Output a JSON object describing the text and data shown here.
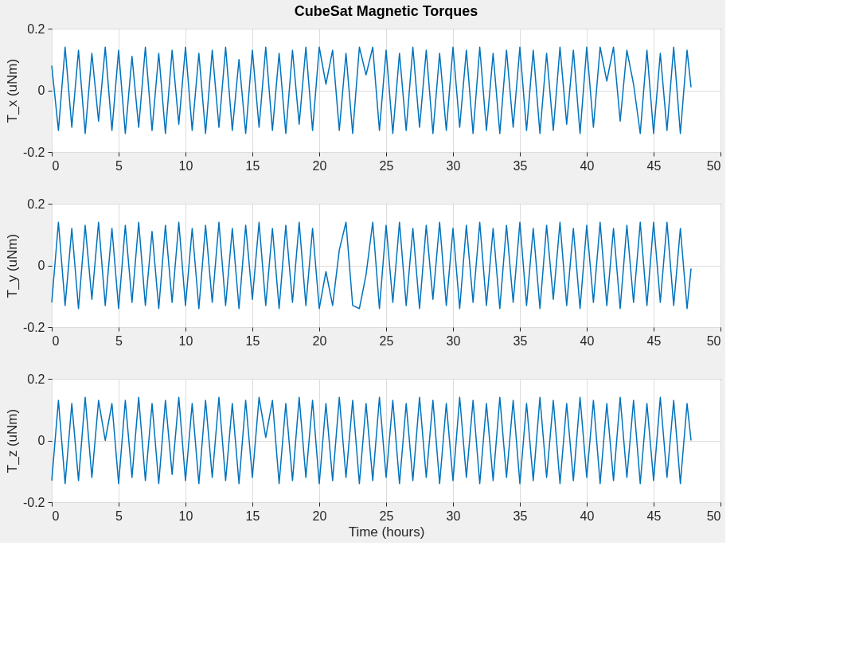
{
  "chart_data": [
    {
      "type": "line",
      "title": "CubeSat Magnetic Torques",
      "ylabel": "T_x (uNm)",
      "xlim": [
        0,
        50
      ],
      "ylim": [
        -0.2,
        0.2
      ],
      "xticks": [
        0,
        5,
        10,
        15,
        20,
        25,
        30,
        35,
        40,
        45,
        50
      ],
      "yticks": [
        -0.2,
        0,
        0.2
      ],
      "grid": true,
      "marker": "none",
      "line_style": "solid",
      "x": [
        0,
        0.5,
        1,
        1.5,
        2,
        2.5,
        3,
        3.5,
        4,
        4.5,
        5,
        5.5,
        6,
        6.5,
        7,
        7.5,
        8,
        8.5,
        9,
        9.5,
        10,
        10.5,
        11,
        11.5,
        12,
        12.5,
        13,
        13.5,
        14,
        14.5,
        15,
        15.5,
        16,
        16.5,
        17,
        17.5,
        18,
        18.5,
        19,
        19.5,
        20,
        20.5,
        21,
        21.5,
        22,
        22.5,
        23,
        23.5,
        24,
        24.5,
        25,
        25.5,
        26,
        26.5,
        27,
        27.5,
        28,
        28.5,
        29,
        29.5,
        30,
        30.5,
        31,
        31.5,
        32,
        32.5,
        33,
        33.5,
        34,
        34.5,
        35,
        35.5,
        36,
        36.5,
        37,
        37.5,
        38,
        38.5,
        39,
        39.5,
        40,
        40.5,
        41,
        41.5,
        42,
        42.5,
        43,
        43.5,
        44,
        44.5,
        45,
        45.5,
        46,
        46.5,
        47,
        47.5,
        47.8
      ],
      "series": [
        {
          "color": "#0072bd",
          "values": [
            0.08,
            -0.13,
            0.14,
            -0.12,
            0.13,
            -0.14,
            0.12,
            -0.1,
            0.14,
            -0.13,
            0.13,
            -0.14,
            0.11,
            -0.12,
            0.14,
            -0.13,
            0.12,
            -0.14,
            0.13,
            -0.11,
            0.14,
            -0.13,
            0.12,
            -0.14,
            0.13,
            -0.12,
            0.14,
            -0.13,
            0.1,
            -0.14,
            0.13,
            -0.12,
            0.14,
            -0.13,
            0.12,
            -0.14,
            0.13,
            -0.11,
            0.14,
            -0.13,
            0.14,
            0.02,
            0.13,
            -0.13,
            0.12,
            -0.14,
            0.14,
            0.05,
            0.14,
            -0.13,
            0.13,
            -0.14,
            0.12,
            -0.13,
            0.14,
            -0.12,
            0.13,
            -0.14,
            0.12,
            -0.13,
            0.14,
            -0.12,
            0.13,
            -0.14,
            0.14,
            -0.13,
            0.12,
            -0.14,
            0.13,
            -0.12,
            0.14,
            -0.13,
            0.13,
            -0.14,
            0.12,
            -0.13,
            0.14,
            -0.11,
            0.13,
            -0.14,
            0.14,
            -0.12,
            0.14,
            0.03,
            0.14,
            -0.1,
            0.13,
            0.02,
            -0.14,
            0.13,
            -0.14,
            0.12,
            -0.13,
            0.14,
            -0.14,
            0.13,
            0.01
          ]
        }
      ]
    },
    {
      "type": "line",
      "ylabel": "T_y (uNm)",
      "xlim": [
        0,
        50
      ],
      "ylim": [
        -0.2,
        0.2
      ],
      "xticks": [
        0,
        5,
        10,
        15,
        20,
        25,
        30,
        35,
        40,
        45,
        50
      ],
      "yticks": [
        -0.2,
        0,
        0.2
      ],
      "grid": true,
      "marker": "none",
      "line_style": "solid",
      "x": [
        0,
        0.5,
        1,
        1.5,
        2,
        2.5,
        3,
        3.5,
        4,
        4.5,
        5,
        5.5,
        6,
        6.5,
        7,
        7.5,
        8,
        8.5,
        9,
        9.5,
        10,
        10.5,
        11,
        11.5,
        12,
        12.5,
        13,
        13.5,
        14,
        14.5,
        15,
        15.5,
        16,
        16.5,
        17,
        17.5,
        18,
        18.5,
        19,
        19.5,
        20,
        20.5,
        21,
        21.5,
        22,
        22.5,
        23,
        23.5,
        24,
        24.5,
        25,
        25.5,
        26,
        26.5,
        27,
        27.5,
        28,
        28.5,
        29,
        29.5,
        30,
        30.5,
        31,
        31.5,
        32,
        32.5,
        33,
        33.5,
        34,
        34.5,
        35,
        35.5,
        36,
        36.5,
        37,
        37.5,
        38,
        38.5,
        39,
        39.5,
        40,
        40.5,
        41,
        41.5,
        42,
        42.5,
        43,
        43.5,
        44,
        44.5,
        45,
        45.5,
        46,
        46.5,
        47,
        47.5,
        47.8
      ],
      "series": [
        {
          "color": "#0072bd",
          "values": [
            -0.12,
            0.14,
            -0.13,
            0.12,
            -0.14,
            0.13,
            -0.11,
            0.14,
            -0.13,
            0.12,
            -0.14,
            0.13,
            -0.12,
            0.14,
            -0.13,
            0.11,
            -0.14,
            0.13,
            -0.12,
            0.14,
            -0.13,
            0.12,
            -0.14,
            0.13,
            -0.12,
            0.14,
            -0.13,
            0.12,
            -0.14,
            0.13,
            -0.11,
            0.14,
            -0.13,
            0.12,
            -0.14,
            0.13,
            -0.12,
            0.14,
            -0.13,
            0.12,
            -0.14,
            -0.02,
            -0.13,
            0.05,
            0.14,
            -0.13,
            -0.14,
            -0.03,
            0.14,
            -0.14,
            0.13,
            -0.12,
            0.14,
            -0.13,
            0.12,
            -0.14,
            0.13,
            -0.11,
            0.14,
            -0.13,
            0.12,
            -0.14,
            0.13,
            -0.12,
            0.14,
            -0.13,
            0.12,
            -0.14,
            0.13,
            -0.12,
            0.14,
            -0.13,
            0.12,
            -0.14,
            0.13,
            -0.11,
            0.14,
            -0.13,
            0.12,
            -0.14,
            0.13,
            -0.12,
            0.14,
            -0.13,
            0.12,
            -0.14,
            0.13,
            -0.12,
            0.14,
            -0.13,
            0.14,
            -0.12,
            0.14,
            -0.13,
            0.12,
            -0.14,
            -0.01
          ]
        }
      ]
    },
    {
      "type": "line",
      "xlabel": "Time (hours)",
      "ylabel": "T_z (uNm)",
      "xlim": [
        0,
        50
      ],
      "ylim": [
        -0.2,
        0.2
      ],
      "xticks": [
        0,
        5,
        10,
        15,
        20,
        25,
        30,
        35,
        40,
        45,
        50
      ],
      "yticks": [
        -0.2,
        0,
        0.2
      ],
      "grid": true,
      "marker": "none",
      "line_style": "solid",
      "x": [
        0,
        0.5,
        1,
        1.5,
        2,
        2.5,
        3,
        3.5,
        4,
        4.5,
        5,
        5.5,
        6,
        6.5,
        7,
        7.5,
        8,
        8.5,
        9,
        9.5,
        10,
        10.5,
        11,
        11.5,
        12,
        12.5,
        13,
        13.5,
        14,
        14.5,
        15,
        15.5,
        16,
        16.5,
        17,
        17.5,
        18,
        18.5,
        19,
        19.5,
        20,
        20.5,
        21,
        21.5,
        22,
        22.5,
        23,
        23.5,
        24,
        24.5,
        25,
        25.5,
        26,
        26.5,
        27,
        27.5,
        28,
        28.5,
        29,
        29.5,
        30,
        30.5,
        31,
        31.5,
        32,
        32.5,
        33,
        33.5,
        34,
        34.5,
        35,
        35.5,
        36,
        36.5,
        37,
        37.5,
        38,
        38.5,
        39,
        39.5,
        40,
        40.5,
        41,
        41.5,
        42,
        42.5,
        43,
        43.5,
        44,
        44.5,
        45,
        45.5,
        46,
        46.5,
        47,
        47.5,
        47.8
      ],
      "series": [
        {
          "color": "#0072bd",
          "values": [
            -0.13,
            0.13,
            -0.14,
            0.12,
            -0.13,
            0.14,
            -0.12,
            0.13,
            0.0,
            0.12,
            -0.14,
            0.13,
            -0.12,
            0.14,
            -0.13,
            0.12,
            -0.14,
            0.13,
            -0.11,
            0.14,
            -0.13,
            0.12,
            -0.14,
            0.13,
            -0.12,
            0.14,
            -0.13,
            0.12,
            -0.14,
            0.13,
            -0.12,
            0.14,
            0.01,
            0.13,
            -0.14,
            0.12,
            -0.13,
            0.14,
            -0.12,
            0.13,
            -0.14,
            0.12,
            -0.13,
            0.14,
            -0.12,
            0.13,
            -0.14,
            0.12,
            -0.13,
            0.14,
            -0.12,
            0.13,
            -0.14,
            0.12,
            -0.13,
            0.14,
            -0.12,
            0.13,
            -0.14,
            0.12,
            -0.13,
            0.14,
            -0.12,
            0.13,
            -0.14,
            0.12,
            -0.13,
            0.14,
            -0.12,
            0.13,
            -0.14,
            0.12,
            -0.13,
            0.14,
            -0.12,
            0.13,
            -0.14,
            0.12,
            -0.13,
            0.14,
            -0.12,
            0.13,
            -0.14,
            0.12,
            -0.13,
            0.14,
            -0.12,
            0.13,
            -0.14,
            0.12,
            -0.13,
            0.14,
            -0.12,
            0.13,
            -0.14,
            0.12,
            0.0
          ]
        }
      ]
    }
  ]
}
